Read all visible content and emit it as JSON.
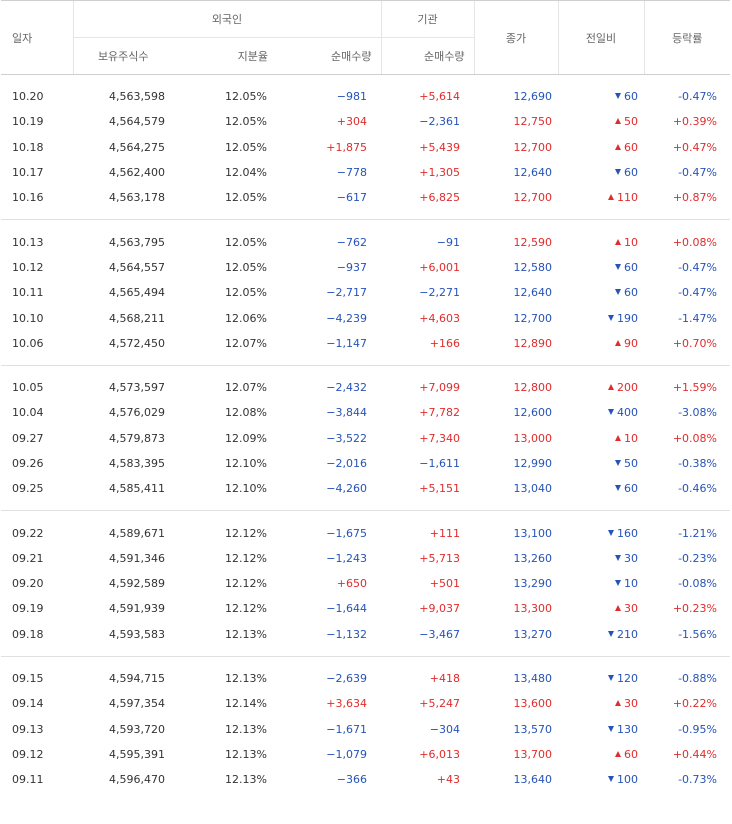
{
  "headers": {
    "date": "일자",
    "foreign": "외국인",
    "institution": "기관",
    "holding_shares": "보유주식수",
    "holding_ratio": "지분율",
    "net_volume_foreign": "순매수량",
    "net_volume_inst": "순매수량",
    "close": "종가",
    "change": "전일비",
    "rate": "등락률"
  },
  "groups": [
    {
      "rows": [
        {
          "date": "10.20",
          "shares": "4,563,598",
          "ratio": "12.05%",
          "fnet": "−981",
          "fnet_dir": "down",
          "inet": "+5,614",
          "inet_dir": "up",
          "close": "12,690",
          "close_dir": "down",
          "chg": "60",
          "chg_dir": "down",
          "rate": "-0.47%",
          "rate_dir": "down"
        },
        {
          "date": "10.19",
          "shares": "4,564,579",
          "ratio": "12.05%",
          "fnet": "+304",
          "fnet_dir": "up",
          "inet": "−2,361",
          "inet_dir": "down",
          "close": "12,750",
          "close_dir": "up",
          "chg": "50",
          "chg_dir": "up",
          "rate": "+0.39%",
          "rate_dir": "up"
        },
        {
          "date": "10.18",
          "shares": "4,564,275",
          "ratio": "12.05%",
          "fnet": "+1,875",
          "fnet_dir": "up",
          "inet": "+5,439",
          "inet_dir": "up",
          "close": "12,700",
          "close_dir": "up",
          "chg": "60",
          "chg_dir": "up",
          "rate": "+0.47%",
          "rate_dir": "up"
        },
        {
          "date": "10.17",
          "shares": "4,562,400",
          "ratio": "12.04%",
          "fnet": "−778",
          "fnet_dir": "down",
          "inet": "+1,305",
          "inet_dir": "up",
          "close": "12,640",
          "close_dir": "down",
          "chg": "60",
          "chg_dir": "down",
          "rate": "-0.47%",
          "rate_dir": "down"
        },
        {
          "date": "10.16",
          "shares": "4,563,178",
          "ratio": "12.05%",
          "fnet": "−617",
          "fnet_dir": "down",
          "inet": "+6,825",
          "inet_dir": "up",
          "close": "12,700",
          "close_dir": "up",
          "chg": "110",
          "chg_dir": "up",
          "rate": "+0.87%",
          "rate_dir": "up"
        }
      ]
    },
    {
      "rows": [
        {
          "date": "10.13",
          "shares": "4,563,795",
          "ratio": "12.05%",
          "fnet": "−762",
          "fnet_dir": "down",
          "inet": "−91",
          "inet_dir": "down",
          "close": "12,590",
          "close_dir": "up",
          "chg": "10",
          "chg_dir": "up",
          "rate": "+0.08%",
          "rate_dir": "up"
        },
        {
          "date": "10.12",
          "shares": "4,564,557",
          "ratio": "12.05%",
          "fnet": "−937",
          "fnet_dir": "down",
          "inet": "+6,001",
          "inet_dir": "up",
          "close": "12,580",
          "close_dir": "down",
          "chg": "60",
          "chg_dir": "down",
          "rate": "-0.47%",
          "rate_dir": "down"
        },
        {
          "date": "10.11",
          "shares": "4,565,494",
          "ratio": "12.05%",
          "fnet": "−2,717",
          "fnet_dir": "down",
          "inet": "−2,271",
          "inet_dir": "down",
          "close": "12,640",
          "close_dir": "down",
          "chg": "60",
          "chg_dir": "down",
          "rate": "-0.47%",
          "rate_dir": "down"
        },
        {
          "date": "10.10",
          "shares": "4,568,211",
          "ratio": "12.06%",
          "fnet": "−4,239",
          "fnet_dir": "down",
          "inet": "+4,603",
          "inet_dir": "up",
          "close": "12,700",
          "close_dir": "down",
          "chg": "190",
          "chg_dir": "down",
          "rate": "-1.47%",
          "rate_dir": "down"
        },
        {
          "date": "10.06",
          "shares": "4,572,450",
          "ratio": "12.07%",
          "fnet": "−1,147",
          "fnet_dir": "down",
          "inet": "+166",
          "inet_dir": "up",
          "close": "12,890",
          "close_dir": "up",
          "chg": "90",
          "chg_dir": "up",
          "rate": "+0.70%",
          "rate_dir": "up"
        }
      ]
    },
    {
      "rows": [
        {
          "date": "10.05",
          "shares": "4,573,597",
          "ratio": "12.07%",
          "fnet": "−2,432",
          "fnet_dir": "down",
          "inet": "+7,099",
          "inet_dir": "up",
          "close": "12,800",
          "close_dir": "up",
          "chg": "200",
          "chg_dir": "up",
          "rate": "+1.59%",
          "rate_dir": "up"
        },
        {
          "date": "10.04",
          "shares": "4,576,029",
          "ratio": "12.08%",
          "fnet": "−3,844",
          "fnet_dir": "down",
          "inet": "+7,782",
          "inet_dir": "up",
          "close": "12,600",
          "close_dir": "down",
          "chg": "400",
          "chg_dir": "down",
          "rate": "-3.08%",
          "rate_dir": "down"
        },
        {
          "date": "09.27",
          "shares": "4,579,873",
          "ratio": "12.09%",
          "fnet": "−3,522",
          "fnet_dir": "down",
          "inet": "+7,340",
          "inet_dir": "up",
          "close": "13,000",
          "close_dir": "up",
          "chg": "10",
          "chg_dir": "up",
          "rate": "+0.08%",
          "rate_dir": "up"
        },
        {
          "date": "09.26",
          "shares": "4,583,395",
          "ratio": "12.10%",
          "fnet": "−2,016",
          "fnet_dir": "down",
          "inet": "−1,611",
          "inet_dir": "down",
          "close": "12,990",
          "close_dir": "down",
          "chg": "50",
          "chg_dir": "down",
          "rate": "-0.38%",
          "rate_dir": "down"
        },
        {
          "date": "09.25",
          "shares": "4,585,411",
          "ratio": "12.10%",
          "fnet": "−4,260",
          "fnet_dir": "down",
          "inet": "+5,151",
          "inet_dir": "up",
          "close": "13,040",
          "close_dir": "down",
          "chg": "60",
          "chg_dir": "down",
          "rate": "-0.46%",
          "rate_dir": "down"
        }
      ]
    },
    {
      "rows": [
        {
          "date": "09.22",
          "shares": "4,589,671",
          "ratio": "12.12%",
          "fnet": "−1,675",
          "fnet_dir": "down",
          "inet": "+111",
          "inet_dir": "up",
          "close": "13,100",
          "close_dir": "down",
          "chg": "160",
          "chg_dir": "down",
          "rate": "-1.21%",
          "rate_dir": "down"
        },
        {
          "date": "09.21",
          "shares": "4,591,346",
          "ratio": "12.12%",
          "fnet": "−1,243",
          "fnet_dir": "down",
          "inet": "+5,713",
          "inet_dir": "up",
          "close": "13,260",
          "close_dir": "down",
          "chg": "30",
          "chg_dir": "down",
          "rate": "-0.23%",
          "rate_dir": "down"
        },
        {
          "date": "09.20",
          "shares": "4,592,589",
          "ratio": "12.12%",
          "fnet": "+650",
          "fnet_dir": "up",
          "inet": "+501",
          "inet_dir": "up",
          "close": "13,290",
          "close_dir": "down",
          "chg": "10",
          "chg_dir": "down",
          "rate": "-0.08%",
          "rate_dir": "down"
        },
        {
          "date": "09.19",
          "shares": "4,591,939",
          "ratio": "12.12%",
          "fnet": "−1,644",
          "fnet_dir": "down",
          "inet": "+9,037",
          "inet_dir": "up",
          "close": "13,300",
          "close_dir": "up",
          "chg": "30",
          "chg_dir": "up",
          "rate": "+0.23%",
          "rate_dir": "up"
        },
        {
          "date": "09.18",
          "shares": "4,593,583",
          "ratio": "12.13%",
          "fnet": "−1,132",
          "fnet_dir": "down",
          "inet": "−3,467",
          "inet_dir": "down",
          "close": "13,270",
          "close_dir": "down",
          "chg": "210",
          "chg_dir": "down",
          "rate": "-1.56%",
          "rate_dir": "down"
        }
      ]
    },
    {
      "rows": [
        {
          "date": "09.15",
          "shares": "4,594,715",
          "ratio": "12.13%",
          "fnet": "−2,639",
          "fnet_dir": "down",
          "inet": "+418",
          "inet_dir": "up",
          "close": "13,480",
          "close_dir": "down",
          "chg": "120",
          "chg_dir": "down",
          "rate": "-0.88%",
          "rate_dir": "down"
        },
        {
          "date": "09.14",
          "shares": "4,597,354",
          "ratio": "12.14%",
          "fnet": "+3,634",
          "fnet_dir": "up",
          "inet": "+5,247",
          "inet_dir": "up",
          "close": "13,600",
          "close_dir": "up",
          "chg": "30",
          "chg_dir": "up",
          "rate": "+0.22%",
          "rate_dir": "up"
        },
        {
          "date": "09.13",
          "shares": "4,593,720",
          "ratio": "12.13%",
          "fnet": "−1,671",
          "fnet_dir": "down",
          "inet": "−304",
          "inet_dir": "down",
          "close": "13,570",
          "close_dir": "down",
          "chg": "130",
          "chg_dir": "down",
          "rate": "-0.95%",
          "rate_dir": "down"
        },
        {
          "date": "09.12",
          "shares": "4,595,391",
          "ratio": "12.13%",
          "fnet": "−1,079",
          "fnet_dir": "down",
          "inet": "+6,013",
          "inet_dir": "up",
          "close": "13,700",
          "close_dir": "up",
          "chg": "60",
          "chg_dir": "up",
          "rate": "+0.44%",
          "rate_dir": "up"
        },
        {
          "date": "09.11",
          "shares": "4,596,470",
          "ratio": "12.13%",
          "fnet": "−366",
          "fnet_dir": "down",
          "inet": "+43",
          "inet_dir": "up",
          "close": "13,640",
          "close_dir": "down",
          "chg": "100",
          "chg_dir": "down",
          "rate": "-0.73%",
          "rate_dir": "down"
        }
      ]
    }
  ],
  "colors": {
    "up": "#e02c2c",
    "down": "#2553b8",
    "text": "#333333",
    "header": "#666666"
  }
}
